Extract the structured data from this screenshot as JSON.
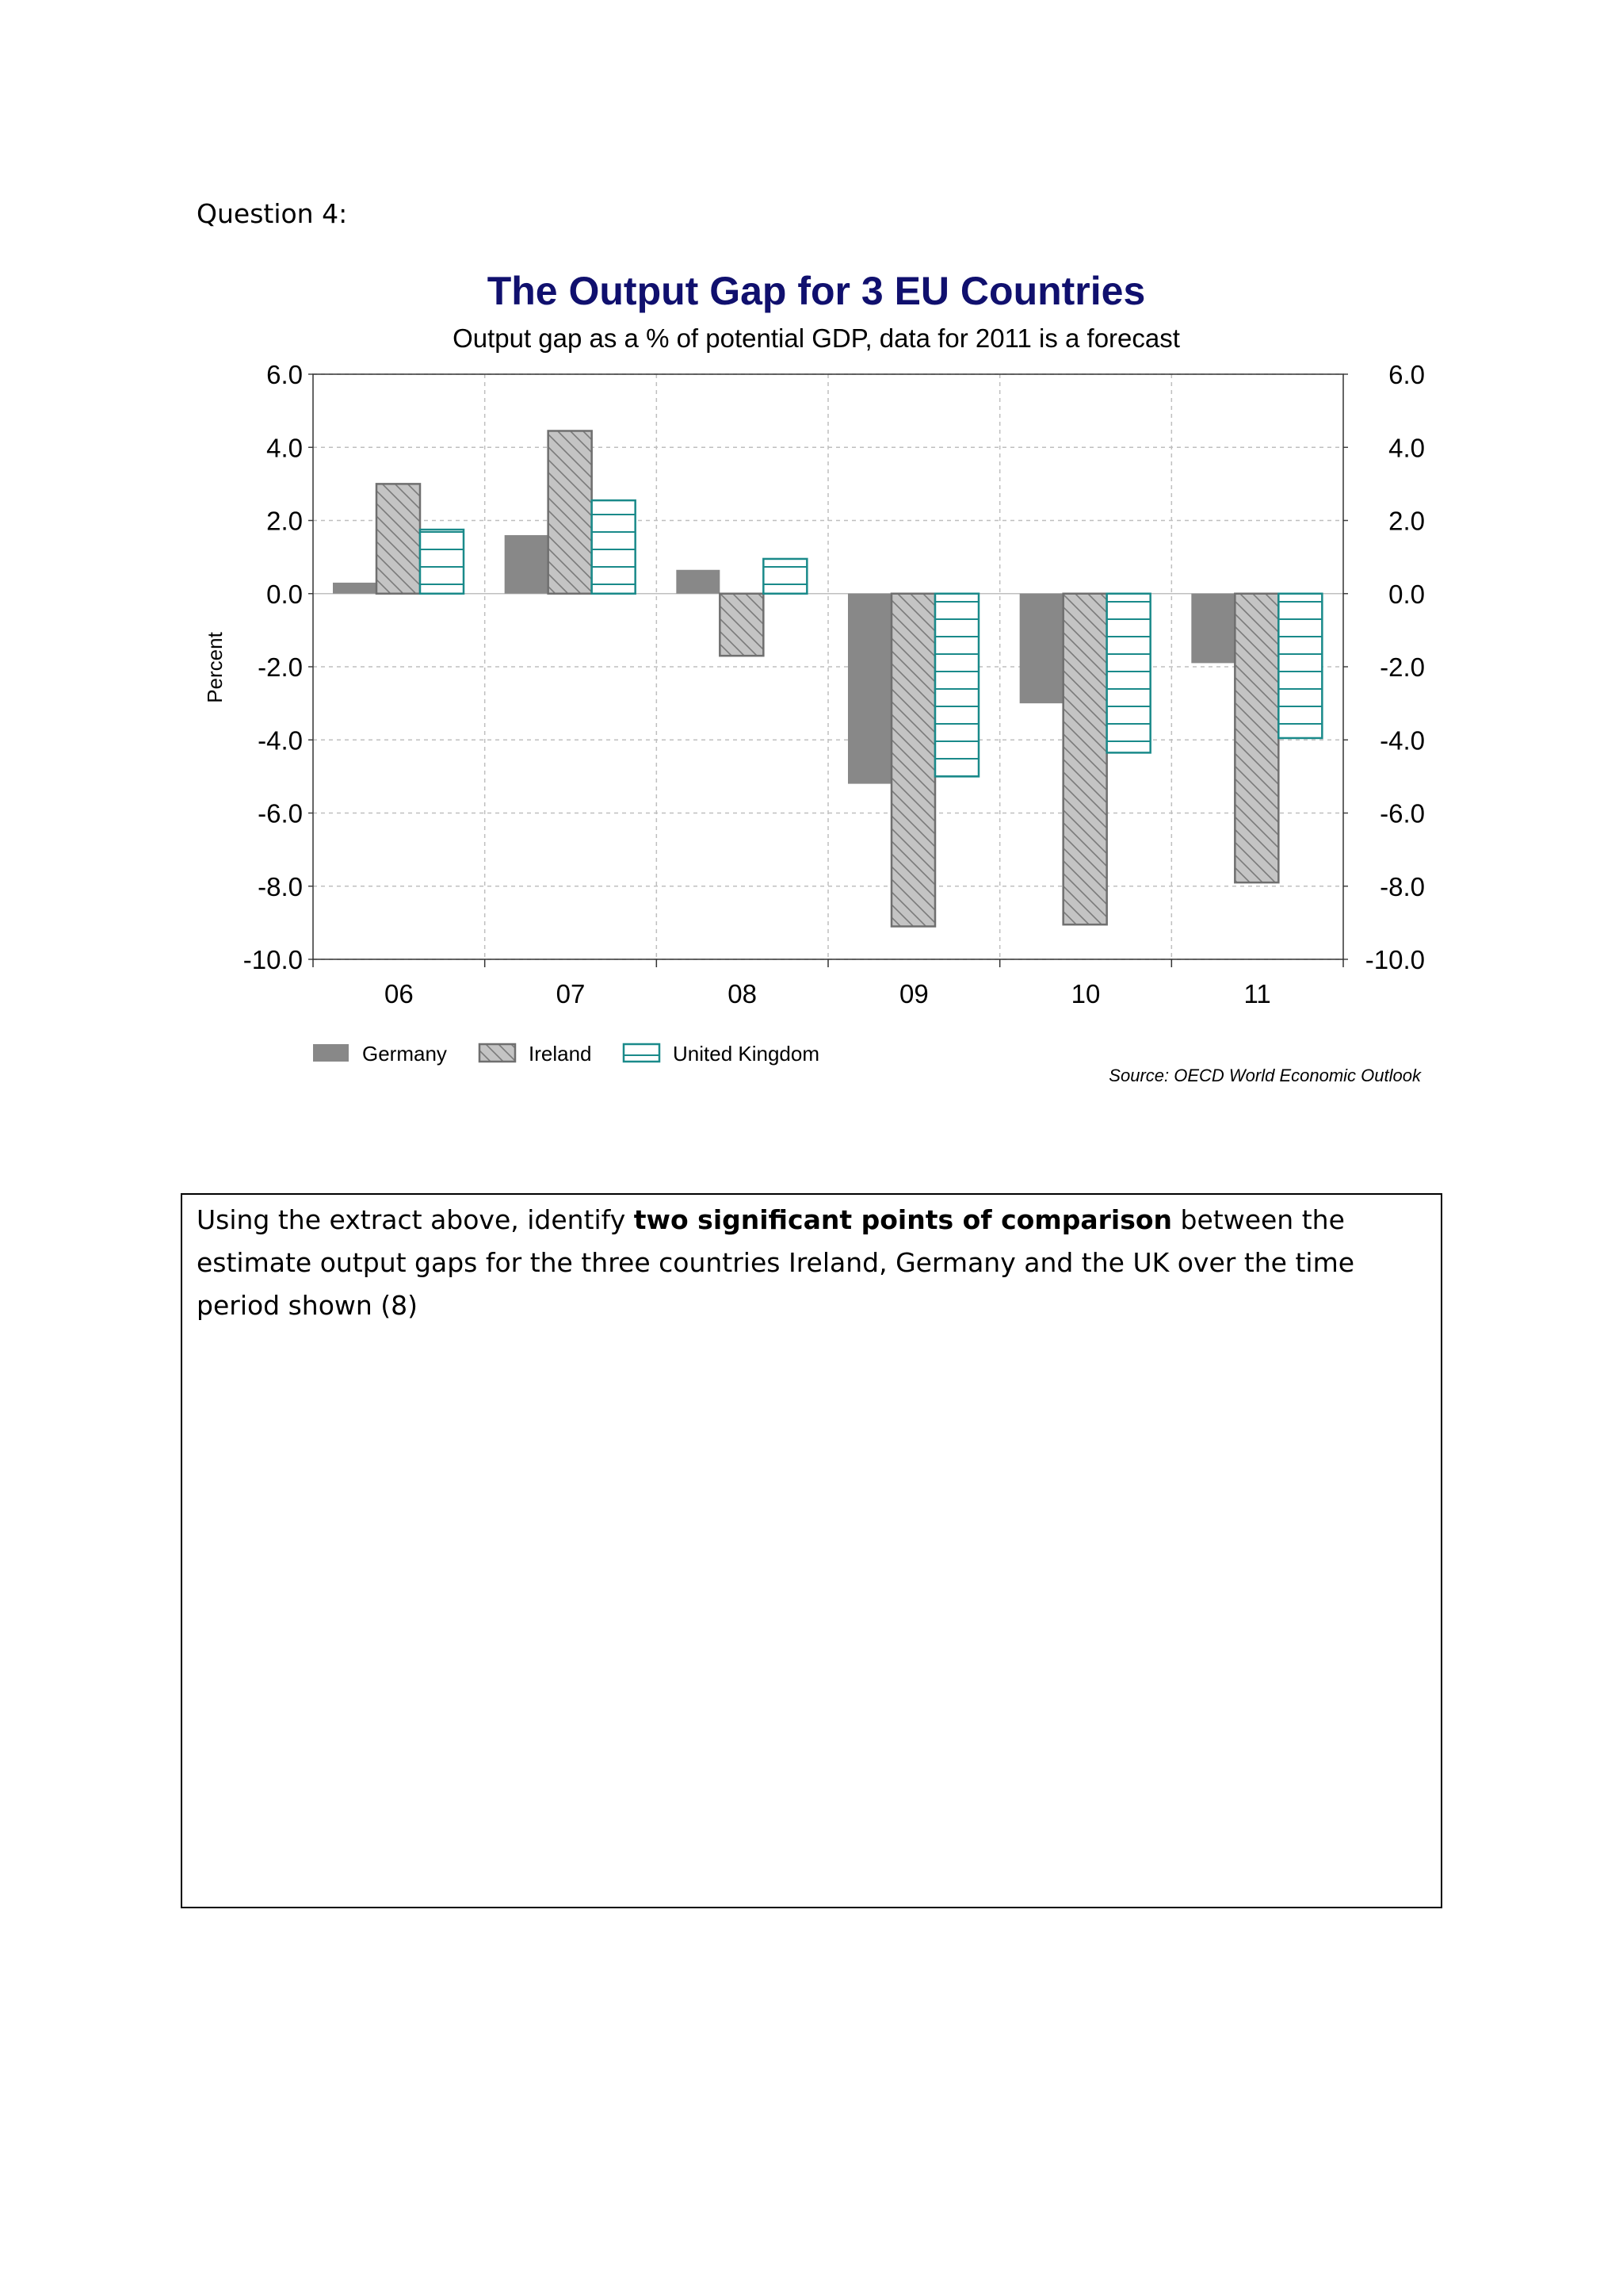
{
  "question_label": "Question 4:",
  "prompt": {
    "before": "Using the extract above, identify ",
    "bold": "two significant points of comparison",
    "after": " between the estimate output gaps for the three countries Ireland, Germany and the UK over the time period shown (8)"
  },
  "chart_data": {
    "type": "bar",
    "title": "The Output Gap for 3 EU Countries",
    "subtitle": "Output gap as a % of potential GDP, data for 2011 is a forecast",
    "ylabel": "Percent",
    "xlabel": "",
    "categories": [
      "06",
      "07",
      "08",
      "09",
      "10",
      "11"
    ],
    "ylim": [
      -10,
      6
    ],
    "yticks": [
      "6.0",
      "4.0",
      "2.0",
      "0.0",
      "-2.0",
      "-4.0",
      "-6.0",
      "-8.0",
      "-10.0"
    ],
    "ytick_values": [
      6,
      4,
      2,
      0,
      -2,
      -4,
      -6,
      -8,
      -10
    ],
    "grid": true,
    "legend_position": "bottom-left",
    "source": "Source: OECD World Economic Outlook",
    "series": [
      {
        "name": "Germany",
        "values": [
          0.3,
          1.6,
          0.65,
          -5.2,
          -3.0,
          -1.9
        ],
        "color": "#888888",
        "pattern": "solid"
      },
      {
        "name": "Ireland",
        "values": [
          3.0,
          4.45,
          -1.7,
          -9.1,
          -9.05,
          -7.9
        ],
        "color": "#bdbdbd",
        "pattern": "diagonal"
      },
      {
        "name": "United Kingdom",
        "values": [
          1.75,
          2.55,
          0.95,
          -5.0,
          -4.35,
          -3.95
        ],
        "color": "#1a8a8a",
        "pattern": "horizontal"
      }
    ]
  }
}
